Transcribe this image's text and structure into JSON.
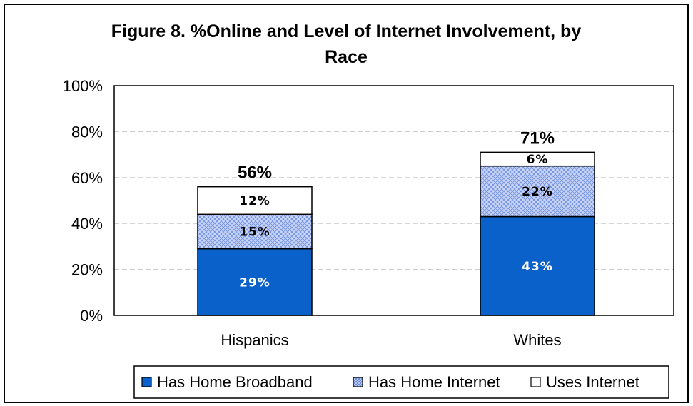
{
  "chart_data": {
    "type": "bar",
    "stacked": true,
    "title": "Figure 8. %Online and Level of Internet Involvement, by Race",
    "title_lines": [
      "Figure 8. %Online and Level of Internet Involvement, by",
      "Race"
    ],
    "categories": [
      "Hispanics",
      "Whites"
    ],
    "series": [
      {
        "name": "Has Home Broadband",
        "values": [
          29,
          43
        ],
        "labels": [
          "29%",
          "43%"
        ],
        "color": "#0a61c9",
        "pattern": "solid"
      },
      {
        "name": "Has Home Internet",
        "values": [
          15,
          22
        ],
        "labels": [
          "15%",
          "22%"
        ],
        "color": "#a9bdf0",
        "pattern": "crosshatch"
      },
      {
        "name": "Uses Internet",
        "values": [
          12,
          6
        ],
        "labels": [
          "12%",
          "6%"
        ],
        "color": "#ffffff",
        "pattern": "none"
      }
    ],
    "totals": [
      "56%",
      "71%"
    ],
    "ylim": [
      0,
      100
    ],
    "yticks": [
      "0%",
      "20%",
      "40%",
      "60%",
      "80%",
      "100%"
    ],
    "ytick_values": [
      0,
      20,
      40,
      60,
      80,
      100
    ],
    "grid": true,
    "legend_position": "bottom",
    "xlabel": "",
    "ylabel": ""
  }
}
